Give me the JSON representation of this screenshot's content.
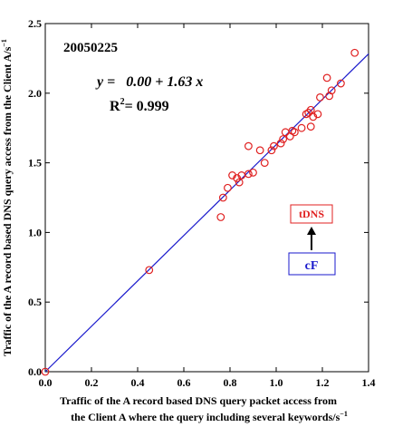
{
  "chart_data": {
    "type": "scatter",
    "xlabel_line1": "Traffic of the A record based DNS query packet access from",
    "xlabel_line2": "the Client A where the query including several keywords/s",
    "xlabel_sup": "−1",
    "ylabel": "Traffic of the A record based DNS query access from the Client A/s",
    "ylabel_sup": "−1",
    "xlim": [
      0.0,
      1.4
    ],
    "ylim": [
      0.0,
      2.5
    ],
    "x_ticks": [
      "0.0",
      "0.2",
      "0.4",
      "0.6",
      "0.8",
      "1.0",
      "1.2",
      "1.4"
    ],
    "y_ticks": [
      "0.0",
      "0.5",
      "1.0",
      "1.5",
      "2.0",
      "2.5"
    ],
    "grid": false,
    "annotations": {
      "date": "20050225",
      "equation": "y =   0.00 + 1.63 x",
      "r2_prefix": "R",
      "r2_sup": "2",
      "r2_value": "= 0.999"
    },
    "legend_boxes": {
      "upper": {
        "label": "tDNS",
        "color": "#e02020"
      },
      "lower": {
        "label": "cF",
        "color": "#1a1acc"
      }
    },
    "series": [
      {
        "marker": "open-circle",
        "color": "#e02020",
        "points": [
          [
            0.0,
            0.0
          ],
          [
            0.45,
            0.73
          ],
          [
            0.76,
            1.11
          ],
          [
            0.77,
            1.25
          ],
          [
            0.79,
            1.32
          ],
          [
            0.81,
            1.41
          ],
          [
            0.83,
            1.39
          ],
          [
            0.84,
            1.36
          ],
          [
            0.85,
            1.41
          ],
          [
            0.88,
            1.42
          ],
          [
            0.88,
            1.62
          ],
          [
            0.9,
            1.43
          ],
          [
            0.93,
            1.59
          ],
          [
            0.95,
            1.5
          ],
          [
            0.98,
            1.59
          ],
          [
            0.99,
            1.62
          ],
          [
            1.02,
            1.64
          ],
          [
            1.03,
            1.67
          ],
          [
            1.04,
            1.72
          ],
          [
            1.06,
            1.69
          ],
          [
            1.07,
            1.73
          ],
          [
            1.08,
            1.72
          ],
          [
            1.11,
            1.75
          ],
          [
            1.13,
            1.85
          ],
          [
            1.14,
            1.86
          ],
          [
            1.15,
            1.88
          ],
          [
            1.15,
            1.76
          ],
          [
            1.16,
            1.83
          ],
          [
            1.18,
            1.85
          ],
          [
            1.19,
            1.97
          ],
          [
            1.22,
            2.11
          ],
          [
            1.23,
            1.98
          ],
          [
            1.24,
            2.02
          ],
          [
            1.28,
            2.07
          ],
          [
            1.34,
            2.29
          ]
        ]
      }
    ],
    "fit_line": {
      "color": "#1a1acc",
      "intercept": 0.0,
      "slope": 1.63,
      "x_range": [
        0.0,
        1.4
      ]
    }
  }
}
